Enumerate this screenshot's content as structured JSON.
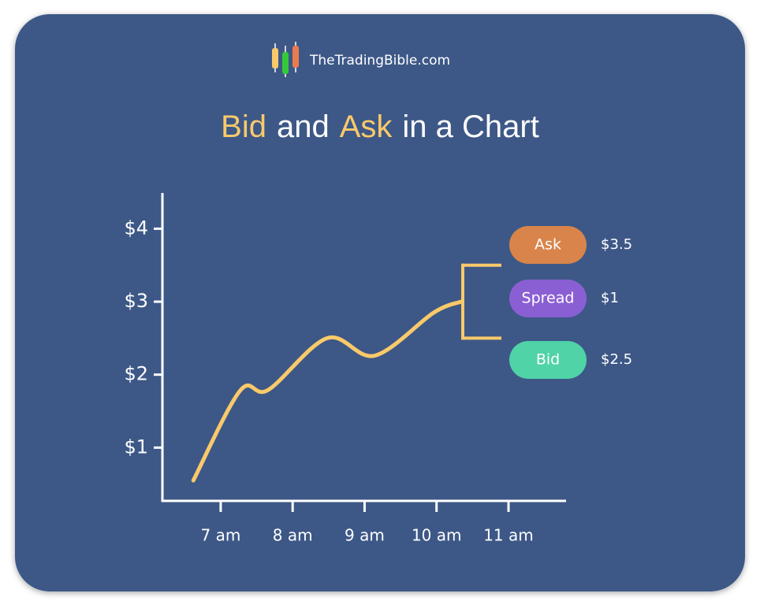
{
  "brand": "TheTradingBible.com",
  "chart_data": {
    "type": "line",
    "title": [
      {
        "text": "Bid",
        "color": "#f9c96a"
      },
      {
        "text": "and",
        "color": "#ffffff"
      },
      {
        "text": "Ask",
        "color": "#f9c96a"
      },
      {
        "text": "in a Chart",
        "color": "#ffffff"
      }
    ],
    "x": [
      6.62,
      7.27,
      7.66,
      8.48,
      9.14,
      9.96,
      10.34
    ],
    "series": [
      {
        "color": "#f9c96a",
        "values": [
          0.55,
          1.78,
          1.79,
          2.5,
          2.26,
          2.85,
          3.0
        ]
      }
    ],
    "xlim": [
      6.19,
      11.8
    ],
    "xticks": [
      {
        "value": 7,
        "label": "7 am"
      },
      {
        "value": 8,
        "label": "8 am"
      },
      {
        "value": 9,
        "label": "9 am"
      },
      {
        "value": 10,
        "label": "10 am"
      },
      {
        "value": 11,
        "label": "11 am"
      }
    ],
    "ylim": [
      0.27,
      4.49
    ],
    "yticks": [
      {
        "value": 1,
        "label": "$1"
      },
      {
        "value": 2,
        "label": "$2"
      },
      {
        "value": 3,
        "label": "$3"
      },
      {
        "value": 4,
        "label": "$4"
      }
    ],
    "annotations": [
      {
        "label": "Ask",
        "value": 3.5,
        "value_label": "$3.5",
        "color": "#d9844a"
      },
      {
        "label": "Spread",
        "value": 1,
        "value_label": "$1",
        "color": "#8b5fd4"
      },
      {
        "label": "Bid",
        "value": 2.5,
        "value_label": "$2.5",
        "color": "#4fd3a7"
      }
    ]
  }
}
